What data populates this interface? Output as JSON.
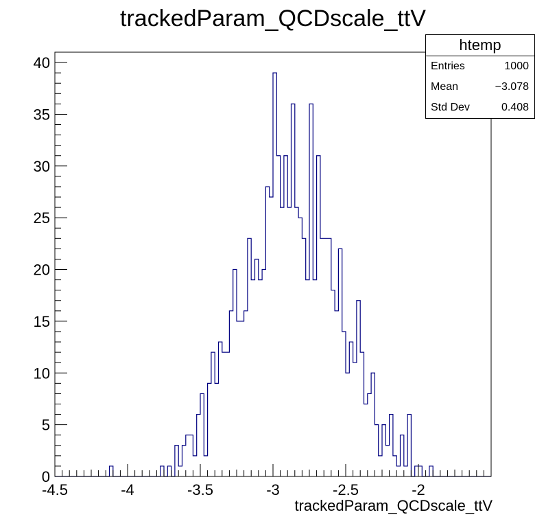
{
  "chart_data": {
    "type": "bar",
    "title": "trackedParam_QCDscale_ttV",
    "xlabel": "trackedParam_QCDscale_ttV",
    "ylabel": "",
    "xlim": [
      -4.5,
      -1.5
    ],
    "ylim": [
      0,
      41
    ],
    "xticks": [
      -4.5,
      -4,
      -3.5,
      -3,
      -2.5,
      -2
    ],
    "xtick_labels": [
      "-4.5",
      "-4",
      "-3.5",
      "-3",
      "-2.5",
      "-2"
    ],
    "yticks": [
      0,
      5,
      10,
      15,
      20,
      25,
      30,
      35,
      40
    ],
    "ytick_labels": [
      "0",
      "5",
      "10",
      "15",
      "20",
      "25",
      "30",
      "35",
      "40"
    ],
    "bin_width": 0.025,
    "bins_start": -4.5,
    "values": [
      0,
      0,
      0,
      0,
      0,
      0,
      0,
      0,
      0,
      0,
      0,
      0,
      0,
      0,
      0,
      1,
      0,
      0,
      0,
      0,
      0,
      0,
      0,
      0,
      0,
      0,
      0,
      0,
      0,
      1,
      0,
      1,
      0,
      3,
      1,
      3,
      4,
      4,
      2,
      6,
      8,
      2,
      9,
      12,
      9,
      13,
      12,
      12,
      16,
      20,
      15,
      15,
      16,
      23,
      19,
      21,
      19,
      20,
      28,
      27,
      39,
      31,
      26,
      31,
      26,
      36,
      26,
      25,
      23,
      19,
      36,
      19,
      31,
      23,
      23,
      23,
      18,
      16,
      22,
      14,
      10,
      13,
      11,
      17,
      12,
      7,
      8,
      10,
      5,
      2,
      5,
      3,
      6,
      2,
      1,
      4,
      1,
      6,
      0,
      1,
      1,
      0,
      0,
      1,
      0,
      0,
      0,
      0,
      0,
      0,
      0,
      0,
      0,
      0,
      0,
      0,
      0,
      0,
      0,
      0
    ],
    "line_color": "#000080",
    "stats": {
      "title": "htemp",
      "rows": [
        {
          "label": "Entries",
          "value": "1000"
        },
        {
          "label": "Mean",
          "value": "−3.078"
        },
        {
          "label": "Std Dev",
          "value": "0.408"
        }
      ]
    }
  }
}
